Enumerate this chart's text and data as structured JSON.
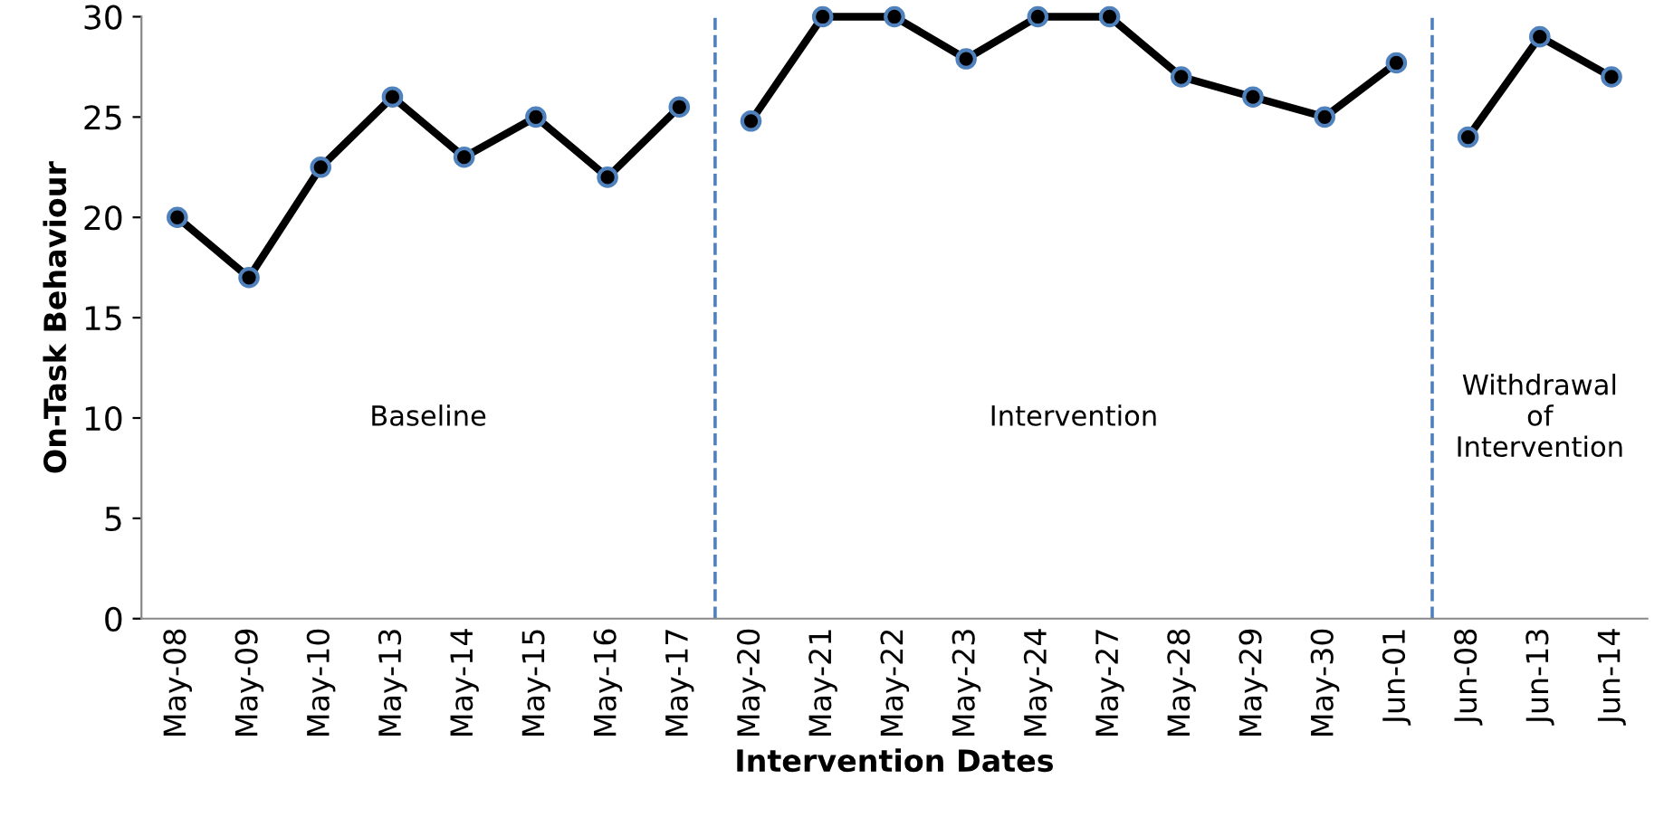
{
  "chart_data": {
    "type": "line",
    "xlabel": "Intervention Dates",
    "ylabel": "On-Task Behaviour",
    "categories": [
      "May-08",
      "May-09",
      "May-10",
      "May-13",
      "May-14",
      "May-15",
      "May-16",
      "May-17",
      "May-20",
      "May-21",
      "May-22",
      "May-23",
      "May-24",
      "May-27",
      "May-28",
      "May-29",
      "May-30",
      "Jun-01",
      "Jun-08",
      "Jun-13",
      "Jun-14"
    ],
    "series": [
      {
        "color": "#000000",
        "values": [
          20,
          17,
          22.5,
          26,
          23,
          25,
          22,
          25.5,
          null,
          null,
          null,
          null,
          null,
          null,
          null,
          null,
          null,
          null,
          null,
          null,
          null
        ]
      },
      {
        "color": "#000000",
        "values": [
          null,
          null,
          null,
          null,
          null,
          null,
          null,
          null,
          24.8,
          30,
          30,
          27.9,
          30,
          30,
          27,
          26,
          25,
          27.7,
          null,
          null,
          null
        ]
      },
      {
        "color": "#000000",
        "values": [
          null,
          null,
          null,
          null,
          null,
          null,
          null,
          null,
          null,
          null,
          null,
          null,
          null,
          null,
          null,
          null,
          null,
          null,
          24,
          29,
          27
        ]
      }
    ],
    "ylim": [
      0,
      30
    ],
    "yticks": [
      0,
      5,
      10,
      15,
      20,
      25,
      30
    ],
    "marker": "circle",
    "line_style": "solid",
    "grid": false,
    "legend": false,
    "annotations": [
      "Baseline",
      "Intervention",
      "Withdrawal\nof\nIntervention"
    ]
  }
}
